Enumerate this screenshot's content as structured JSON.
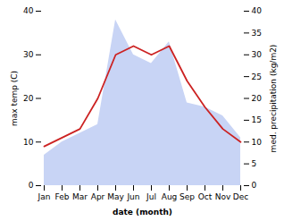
{
  "chart_data": {
    "type": "line",
    "categories": [
      "Jan",
      "Feb",
      "Mar",
      "Apr",
      "May",
      "Jun",
      "Jul",
      "Aug",
      "Sep",
      "Oct",
      "Nov",
      "Dec"
    ],
    "xlabel": "date (month)",
    "ylabel": "max temp (C)",
    "y2label": "med. precipitation (kg/m2)",
    "ylim": [
      0,
      40
    ],
    "yticks": [
      0,
      10,
      20,
      30,
      40
    ],
    "y2lim": [
      0,
      40
    ],
    "y2ticks": [
      0,
      5,
      10,
      15,
      20,
      25,
      30,
      35,
      40
    ],
    "grid": false,
    "series": [
      {
        "type": "area",
        "axis": "y2",
        "color": "#c8d4f5",
        "values": [
          7,
          10,
          12,
          14,
          38,
          30,
          28,
          33,
          19,
          18,
          16,
          11
        ]
      },
      {
        "type": "line",
        "color": "#cc2222",
        "values": [
          9,
          11,
          13,
          20,
          30,
          32,
          30,
          32,
          24,
          18,
          13,
          10
        ]
      }
    ]
  }
}
